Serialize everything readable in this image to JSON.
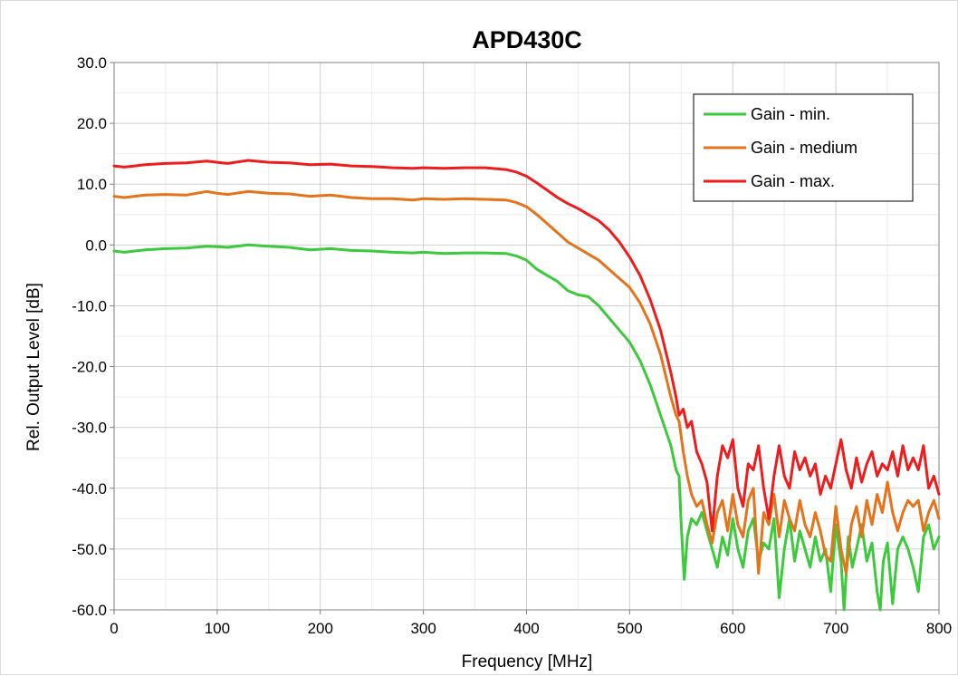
{
  "chart_data": {
    "type": "line",
    "title": "APD430C",
    "xlabel": "Frequency  [MHz]",
    "ylabel": "Rel. Output Level  [dB]",
    "xlim": [
      0,
      800
    ],
    "ylim": [
      -60,
      30
    ],
    "x_ticks": [
      0,
      100,
      200,
      300,
      400,
      500,
      600,
      700,
      800
    ],
    "y_ticks": [
      -60,
      -50,
      -40,
      -30,
      -20,
      -10,
      0,
      10,
      20,
      30
    ],
    "x_tick_labels": [
      "0",
      "100",
      "200",
      "300",
      "400",
      "500",
      "600",
      "700",
      "800"
    ],
    "y_tick_labels": [
      "-60.0",
      "-50.0",
      "-40.0",
      "-30.0",
      "-20.0",
      "-10.0",
      "0.0",
      "10.0",
      "20.0",
      "30.0"
    ],
    "grid": true,
    "legend_position": "top-right",
    "series": [
      {
        "name": "Gain - min.",
        "color": "#3cc93c",
        "points": [
          [
            0,
            -1
          ],
          [
            10,
            -1.2
          ],
          [
            20,
            -1
          ],
          [
            30,
            -0.8
          ],
          [
            50,
            -0.6
          ],
          [
            70,
            -0.5
          ],
          [
            90,
            -0.2
          ],
          [
            100,
            -0.3
          ],
          [
            110,
            -0.4
          ],
          [
            130,
            0
          ],
          [
            150,
            -0.2
          ],
          [
            170,
            -0.4
          ],
          [
            190,
            -0.8
          ],
          [
            210,
            -0.6
          ],
          [
            230,
            -0.9
          ],
          [
            250,
            -1
          ],
          [
            270,
            -1.2
          ],
          [
            290,
            -1.3
          ],
          [
            300,
            -1.2
          ],
          [
            320,
            -1.4
          ],
          [
            340,
            -1.3
          ],
          [
            360,
            -1.3
          ],
          [
            380,
            -1.4
          ],
          [
            390,
            -1.8
          ],
          [
            400,
            -2.5
          ],
          [
            410,
            -4
          ],
          [
            420,
            -5
          ],
          [
            430,
            -6
          ],
          [
            440,
            -7.5
          ],
          [
            450,
            -8.2
          ],
          [
            460,
            -8.5
          ],
          [
            470,
            -10
          ],
          [
            480,
            -12
          ],
          [
            490,
            -14
          ],
          [
            500,
            -16
          ],
          [
            510,
            -19
          ],
          [
            520,
            -23
          ],
          [
            530,
            -28
          ],
          [
            540,
            -33
          ],
          [
            545,
            -37
          ],
          [
            548,
            -38
          ],
          [
            550,
            -46
          ],
          [
            553,
            -55
          ],
          [
            556,
            -48
          ],
          [
            560,
            -45
          ],
          [
            565,
            -46
          ],
          [
            570,
            -44
          ],
          [
            575,
            -47
          ],
          [
            580,
            -50
          ],
          [
            585,
            -53
          ],
          [
            590,
            -48
          ],
          [
            595,
            -51
          ],
          [
            600,
            -45
          ],
          [
            605,
            -50
          ],
          [
            610,
            -53
          ],
          [
            615,
            -47
          ],
          [
            620,
            -45
          ],
          [
            625,
            -52
          ],
          [
            630,
            -49
          ],
          [
            635,
            -50
          ],
          [
            640,
            -45
          ],
          [
            645,
            -58
          ],
          [
            650,
            -50
          ],
          [
            655,
            -45
          ],
          [
            660,
            -52
          ],
          [
            665,
            -47
          ],
          [
            670,
            -50
          ],
          [
            675,
            -53
          ],
          [
            680,
            -48
          ],
          [
            685,
            -52
          ],
          [
            690,
            -50
          ],
          [
            695,
            -57
          ],
          [
            700,
            -46
          ],
          [
            705,
            -52
          ],
          [
            708,
            -60
          ],
          [
            712,
            -48
          ],
          [
            716,
            -53
          ],
          [
            720,
            -50
          ],
          [
            725,
            -46
          ],
          [
            730,
            -52
          ],
          [
            735,
            -49
          ],
          [
            740,
            -57
          ],
          [
            743,
            -60
          ],
          [
            746,
            -52
          ],
          [
            750,
            -49
          ],
          [
            755,
            -59
          ],
          [
            760,
            -50
          ],
          [
            765,
            -48
          ],
          [
            770,
            -50
          ],
          [
            775,
            -53
          ],
          [
            780,
            -57
          ],
          [
            785,
            -48
          ],
          [
            790,
            -46
          ],
          [
            795,
            -50
          ],
          [
            800,
            -48
          ]
        ]
      },
      {
        "name": "Gain - medium",
        "color": "#e6731a",
        "points": [
          [
            0,
            8
          ],
          [
            10,
            7.8
          ],
          [
            20,
            8
          ],
          [
            30,
            8.2
          ],
          [
            50,
            8.3
          ],
          [
            70,
            8.2
          ],
          [
            90,
            8.8
          ],
          [
            100,
            8.5
          ],
          [
            110,
            8.3
          ],
          [
            130,
            8.8
          ],
          [
            150,
            8.5
          ],
          [
            170,
            8.4
          ],
          [
            190,
            8
          ],
          [
            210,
            8.2
          ],
          [
            230,
            7.8
          ],
          [
            250,
            7.6
          ],
          [
            270,
            7.6
          ],
          [
            290,
            7.4
          ],
          [
            300,
            7.6
          ],
          [
            320,
            7.5
          ],
          [
            340,
            7.6
          ],
          [
            360,
            7.5
          ],
          [
            380,
            7.4
          ],
          [
            390,
            7
          ],
          [
            400,
            6.3
          ],
          [
            410,
            5
          ],
          [
            420,
            3.5
          ],
          [
            430,
            2
          ],
          [
            440,
            0.5
          ],
          [
            450,
            -0.5
          ],
          [
            460,
            -1.5
          ],
          [
            470,
            -2.5
          ],
          [
            480,
            -4
          ],
          [
            490,
            -5.5
          ],
          [
            500,
            -7
          ],
          [
            510,
            -9.5
          ],
          [
            520,
            -13
          ],
          [
            530,
            -18
          ],
          [
            540,
            -25
          ],
          [
            545,
            -28
          ],
          [
            548,
            -29
          ],
          [
            552,
            -34
          ],
          [
            556,
            -38
          ],
          [
            560,
            -41
          ],
          [
            565,
            -43
          ],
          [
            570,
            -42
          ],
          [
            575,
            -46
          ],
          [
            580,
            -49
          ],
          [
            585,
            -44
          ],
          [
            590,
            -42
          ],
          [
            595,
            -47
          ],
          [
            600,
            -41
          ],
          [
            605,
            -46
          ],
          [
            610,
            -48
          ],
          [
            615,
            -42
          ],
          [
            620,
            -40
          ],
          [
            625,
            -54
          ],
          [
            630,
            -44
          ],
          [
            635,
            -46
          ],
          [
            640,
            -41
          ],
          [
            645,
            -48
          ],
          [
            650,
            -42
          ],
          [
            655,
            -45
          ],
          [
            660,
            -47
          ],
          [
            665,
            -42
          ],
          [
            670,
            -46
          ],
          [
            675,
            -48
          ],
          [
            680,
            -44
          ],
          [
            685,
            -47
          ],
          [
            690,
            -51
          ],
          [
            695,
            -52
          ],
          [
            700,
            -43
          ],
          [
            705,
            -50
          ],
          [
            710,
            -54
          ],
          [
            715,
            -46
          ],
          [
            720,
            -43
          ],
          [
            725,
            -48
          ],
          [
            730,
            -42
          ],
          [
            735,
            -46
          ],
          [
            740,
            -41
          ],
          [
            745,
            -44
          ],
          [
            750,
            -39
          ],
          [
            755,
            -44
          ],
          [
            760,
            -47
          ],
          [
            765,
            -44
          ],
          [
            770,
            -42
          ],
          [
            775,
            -43
          ],
          [
            780,
            -42
          ],
          [
            785,
            -47
          ],
          [
            790,
            -44
          ],
          [
            795,
            -42
          ],
          [
            800,
            -45
          ]
        ]
      },
      {
        "name": "Gain - max.",
        "color": "#ee1c1c",
        "points": [
          [
            0,
            13
          ],
          [
            10,
            12.8
          ],
          [
            20,
            13
          ],
          [
            30,
            13.2
          ],
          [
            50,
            13.4
          ],
          [
            70,
            13.5
          ],
          [
            90,
            13.8
          ],
          [
            100,
            13.6
          ],
          [
            110,
            13.4
          ],
          [
            130,
            13.9
          ],
          [
            150,
            13.6
          ],
          [
            170,
            13.5
          ],
          [
            190,
            13.2
          ],
          [
            210,
            13.3
          ],
          [
            230,
            13
          ],
          [
            250,
            12.9
          ],
          [
            270,
            12.7
          ],
          [
            290,
            12.6
          ],
          [
            300,
            12.7
          ],
          [
            320,
            12.6
          ],
          [
            340,
            12.7
          ],
          [
            360,
            12.7
          ],
          [
            380,
            12.4
          ],
          [
            390,
            12
          ],
          [
            400,
            11.3
          ],
          [
            410,
            10.2
          ],
          [
            420,
            9
          ],
          [
            430,
            7.8
          ],
          [
            440,
            6.8
          ],
          [
            450,
            6
          ],
          [
            460,
            5
          ],
          [
            470,
            4
          ],
          [
            480,
            2.5
          ],
          [
            490,
            0.5
          ],
          [
            500,
            -2
          ],
          [
            510,
            -5
          ],
          [
            520,
            -9
          ],
          [
            530,
            -14
          ],
          [
            540,
            -21
          ],
          [
            545,
            -25
          ],
          [
            548,
            -28
          ],
          [
            552,
            -27
          ],
          [
            556,
            -30
          ],
          [
            560,
            -29
          ],
          [
            565,
            -34
          ],
          [
            570,
            -36
          ],
          [
            575,
            -39
          ],
          [
            580,
            -47
          ],
          [
            585,
            -38
          ],
          [
            590,
            -33
          ],
          [
            595,
            -35
          ],
          [
            600,
            -32
          ],
          [
            605,
            -40
          ],
          [
            610,
            -43
          ],
          [
            615,
            -36
          ],
          [
            620,
            -37
          ],
          [
            625,
            -33
          ],
          [
            630,
            -40
          ],
          [
            635,
            -45
          ],
          [
            640,
            -38
          ],
          [
            645,
            -33
          ],
          [
            650,
            -38
          ],
          [
            655,
            -40
          ],
          [
            660,
            -34
          ],
          [
            665,
            -37
          ],
          [
            670,
            -35
          ],
          [
            675,
            -38
          ],
          [
            680,
            -36
          ],
          [
            685,
            -41
          ],
          [
            690,
            -38
          ],
          [
            695,
            -40
          ],
          [
            700,
            -36
          ],
          [
            705,
            -32
          ],
          [
            710,
            -37
          ],
          [
            715,
            -40
          ],
          [
            720,
            -35
          ],
          [
            725,
            -39
          ],
          [
            730,
            -36
          ],
          [
            735,
            -34
          ],
          [
            740,
            -38
          ],
          [
            745,
            -36
          ],
          [
            750,
            -37
          ],
          [
            755,
            -34
          ],
          [
            760,
            -38
          ],
          [
            765,
            -33
          ],
          [
            770,
            -37
          ],
          [
            775,
            -35
          ],
          [
            780,
            -37
          ],
          [
            785,
            -33
          ],
          [
            790,
            -40
          ],
          [
            795,
            -38
          ],
          [
            800,
            -41
          ]
        ]
      }
    ]
  }
}
